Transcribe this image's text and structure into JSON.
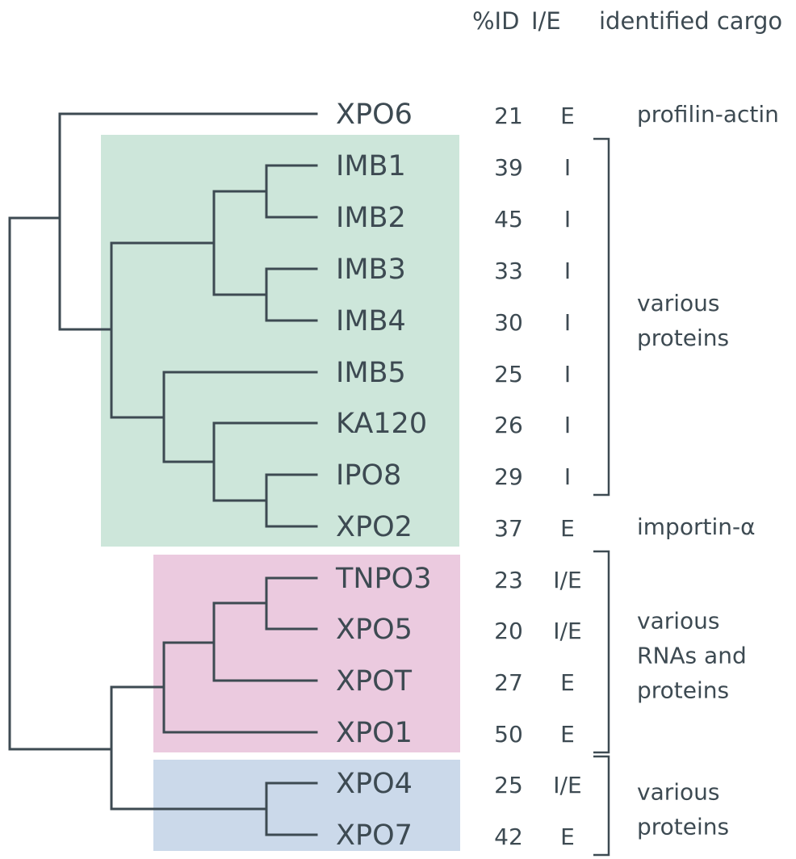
{
  "headers": {
    "pid": "%ID",
    "ie": "I/E",
    "cargo": "identified cargo"
  },
  "colors": {
    "green_group": "#cde6da",
    "pink_group": "#ebcadf",
    "blue_group": "#cbd9ea",
    "ink": "#3d4a52"
  },
  "rows": [
    {
      "name": "XPO6",
      "pid": "21",
      "ie": "E"
    },
    {
      "name": "IMB1",
      "pid": "39",
      "ie": "I"
    },
    {
      "name": "IMB2",
      "pid": "45",
      "ie": "I"
    },
    {
      "name": "IMB3",
      "pid": "33",
      "ie": "I"
    },
    {
      "name": "IMB4",
      "pid": "30",
      "ie": "I"
    },
    {
      "name": "IMB5",
      "pid": "25",
      "ie": "I"
    },
    {
      "name": "KA120",
      "pid": "26",
      "ie": "I"
    },
    {
      "name": "IPO8",
      "pid": "29",
      "ie": "I"
    },
    {
      "name": "XPO2",
      "pid": "37",
      "ie": "E"
    },
    {
      "name": "TNPO3",
      "pid": "23",
      "ie": "I/E"
    },
    {
      "name": "XPO5",
      "pid": "20",
      "ie": "I/E"
    },
    {
      "name": "XPOT",
      "pid": "27",
      "ie": "E"
    },
    {
      "name": "XPO1",
      "pid": "50",
      "ie": "E"
    },
    {
      "name": "XPO4",
      "pid": "25",
      "ie": "I/E"
    },
    {
      "name": "XPO7",
      "pid": "42",
      "ie": "E"
    }
  ],
  "cargo": [
    {
      "lines": [
        "profilin-actin"
      ],
      "bracket": false,
      "from": 0,
      "to": 0
    },
    {
      "lines": [
        "various",
        "proteins"
      ],
      "bracket": true,
      "from": 1,
      "to": 7
    },
    {
      "lines": [
        "importin-α"
      ],
      "bracket": false,
      "from": 8,
      "to": 8
    },
    {
      "lines": [
        "various",
        "RNAs and",
        "proteins"
      ],
      "bracket": true,
      "from": 9,
      "to": 12
    },
    {
      "lines": [
        "various",
        "proteins"
      ],
      "bracket": true,
      "from": 13,
      "to": 14
    }
  ]
}
